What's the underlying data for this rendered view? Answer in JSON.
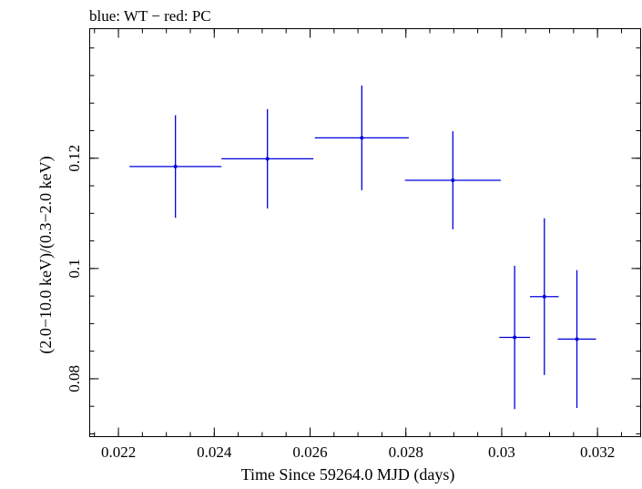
{
  "chart_data": {
    "type": "scatter",
    "title": "blue: WT − red: PC",
    "xlabel": "Time Since 59264.0 MJD (days)",
    "ylabel": "(2.0−10.0 keV)/(0.3−2.0 keV)",
    "xlim": [
      0.0214,
      0.0329
    ],
    "ylim": [
      0.0695,
      0.1435
    ],
    "x_ticks": [
      {
        "value": 0.022,
        "label": "0.022"
      },
      {
        "value": 0.024,
        "label": "0.024"
      },
      {
        "value": 0.026,
        "label": "0.026"
      },
      {
        "value": 0.028,
        "label": "0.028"
      },
      {
        "value": 0.03,
        "label": "0.03"
      },
      {
        "value": 0.032,
        "label": "0.032"
      }
    ],
    "y_ticks": [
      {
        "value": 0.08,
        "label": "0.08"
      },
      {
        "value": 0.1,
        "label": "0.1"
      },
      {
        "value": 0.12,
        "label": "0.12"
      }
    ],
    "x_minor_step": 0.0005,
    "y_minor_step": 0.005,
    "grid": false,
    "series": [
      {
        "color": "#0000dd",
        "points": [
          {
            "x": 0.02319,
            "y": 0.1185,
            "xerr": 0.00096,
            "yerr": 0.0093
          },
          {
            "x": 0.02511,
            "y": 0.1199,
            "xerr": 0.00096,
            "yerr": 0.009
          },
          {
            "x": 0.02708,
            "y": 0.1237,
            "xerr": 0.00098,
            "yerr": 0.0095
          },
          {
            "x": 0.02898,
            "y": 0.116,
            "xerr": 0.001,
            "yerr": 0.0089
          },
          {
            "x": 0.03027,
            "y": 0.0875,
            "xerr": 0.00032,
            "yerr": 0.013
          },
          {
            "x": 0.03089,
            "y": 0.0949,
            "xerr": 0.0003,
            "yerr": 0.0142
          },
          {
            "x": 0.03157,
            "y": 0.0872,
            "xerr": 0.0004,
            "yerr": 0.0125
          }
        ]
      }
    ]
  }
}
